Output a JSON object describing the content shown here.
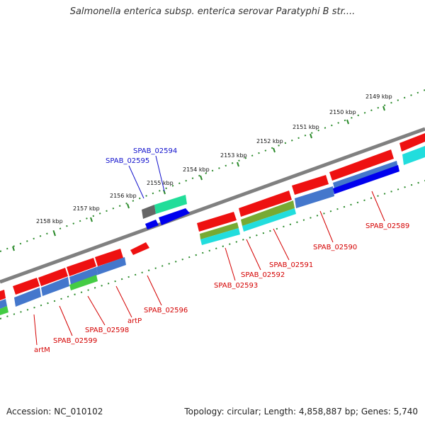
{
  "title": "Salmonella enterica subsp. enterica serovar Paratyphi B str....",
  "accession": "Accession: NC_010102",
  "summary": "Topology: circular; Length: 4,858,887 bp; Genes: 5,740",
  "ticks": [
    "2149 kbp",
    "2150 kbp",
    "2151 kbp",
    "2152 kbp",
    "2153 kbp",
    "2154 kbp",
    "2155 kbp",
    "2156 kbp",
    "2157 kbp",
    "2158 kbp"
  ],
  "gene_labels": [
    "SPAB_02594",
    "SPAB_02595",
    "SPAB_02589",
    "SPAB_02590",
    "SPAB_02591",
    "SPAB_02592",
    "SPAB_02593",
    "SPAB_02596",
    "artP",
    "SPAB_02598",
    "SPAB_02599",
    "artM"
  ],
  "colors": {
    "cds": "#ee1111",
    "backbone": "#808080",
    "tick_track": "#2a8a2a",
    "label_red": "#d40000",
    "label_blue": "#1010cc"
  }
}
